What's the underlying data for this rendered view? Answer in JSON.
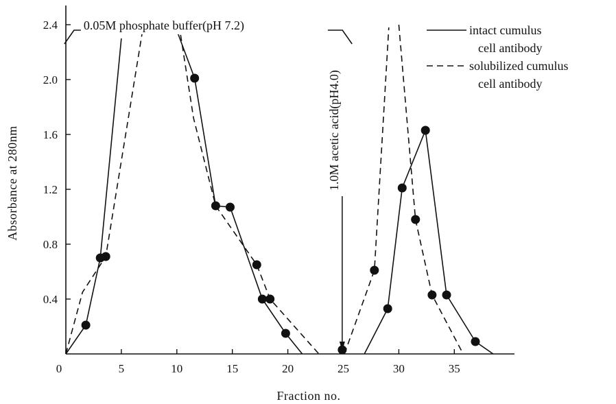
{
  "chart_data": {
    "type": "line",
    "title": "",
    "xlabel": "Fraction no.",
    "ylabel": "Absorbance at 280nm",
    "xlim": [
      0,
      40
    ],
    "ylim": [
      0,
      2.4
    ],
    "x_ticks": [
      0,
      5,
      10,
      15,
      20,
      25,
      30,
      35
    ],
    "y_ticks": [
      0.4,
      0.8,
      1.2,
      1.6,
      2.0,
      2.4
    ],
    "x_tick_labels": [
      "0",
      "5",
      "10",
      "15",
      "20",
      "25",
      "30",
      "35"
    ],
    "y_tick_labels": [
      "0.4",
      "0.8",
      "1.2",
      "1.6",
      "2.0",
      "2.4"
    ],
    "grid": false,
    "legend_position": "top-right",
    "series": [
      {
        "name": "intact cumulus cell antibody",
        "style": "solid",
        "segments": [
          [
            [
              0,
              0
            ],
            [
              1.8,
              0.21
            ],
            [
              3.1,
              0.7
            ],
            [
              5.0,
              2.3
            ]
          ],
          [
            [
              9.8,
              2.4
            ],
            [
              11.6,
              2.01
            ],
            [
              13.5,
              1.08
            ],
            [
              14.8,
              1.07
            ],
            [
              17.7,
              0.4
            ],
            [
              19.8,
              0.15
            ],
            [
              21.3,
              0
            ]
          ],
          [
            [
              26.9,
              0
            ],
            [
              29.0,
              0.33
            ],
            [
              30.3,
              1.21
            ],
            [
              32.4,
              1.63
            ],
            [
              34.3,
              0.43
            ],
            [
              36.9,
              0.09
            ],
            [
              38.5,
              0
            ]
          ]
        ],
        "points": [
          [
            1.8,
            0.21
          ],
          [
            3.1,
            0.7
          ],
          [
            11.6,
            2.01
          ],
          [
            14.8,
            1.07
          ],
          [
            17.7,
            0.4
          ],
          [
            19.8,
            0.15
          ],
          [
            24.9,
            0.03
          ],
          [
            29.0,
            0.33
          ],
          [
            30.3,
            1.21
          ],
          [
            32.4,
            1.63
          ],
          [
            34.3,
            0.43
          ],
          [
            36.9,
            0.09
          ]
        ]
      },
      {
        "name": "solubilized cumulus cell antibody",
        "style": "dashed",
        "segments": [
          [
            [
              0,
              0
            ],
            [
              1.5,
              0.45
            ],
            [
              3.6,
              0.71
            ],
            [
              6.9,
              2.35
            ]
          ],
          [
            [
              10.2,
              2.4
            ],
            [
              11.5,
              1.72
            ],
            [
              13.5,
              1.08
            ],
            [
              17.2,
              0.65
            ],
            [
              18.4,
              0.4
            ],
            [
              22.8,
              0
            ]
          ],
          [
            [
              25.1,
              0
            ],
            [
              27.8,
              0.61
            ],
            [
              29.1,
              2.38
            ]
          ],
          [
            [
              30.0,
              2.4
            ],
            [
              31.5,
              0.98
            ],
            [
              33.0,
              0.43
            ],
            [
              35.8,
              0
            ]
          ]
        ],
        "points": [
          [
            3.6,
            0.71
          ],
          [
            13.5,
            1.08
          ],
          [
            17.2,
            0.65
          ],
          [
            18.4,
            0.4
          ],
          [
            27.8,
            0.61
          ],
          [
            31.5,
            0.98
          ],
          [
            33.0,
            0.43
          ]
        ]
      }
    ],
    "annotations": [
      {
        "text": "0.05M phosphate buffer(pH 7.2)",
        "type": "bracket",
        "x_range": [
          -0.5,
          24.3
        ],
        "y": 2.4
      },
      {
        "text": "1.0M acetic acid(pH4.0)",
        "type": "vertical-arrow",
        "x": 24.9,
        "y_from": 1.55,
        "y_to": 0.03
      }
    ]
  }
}
